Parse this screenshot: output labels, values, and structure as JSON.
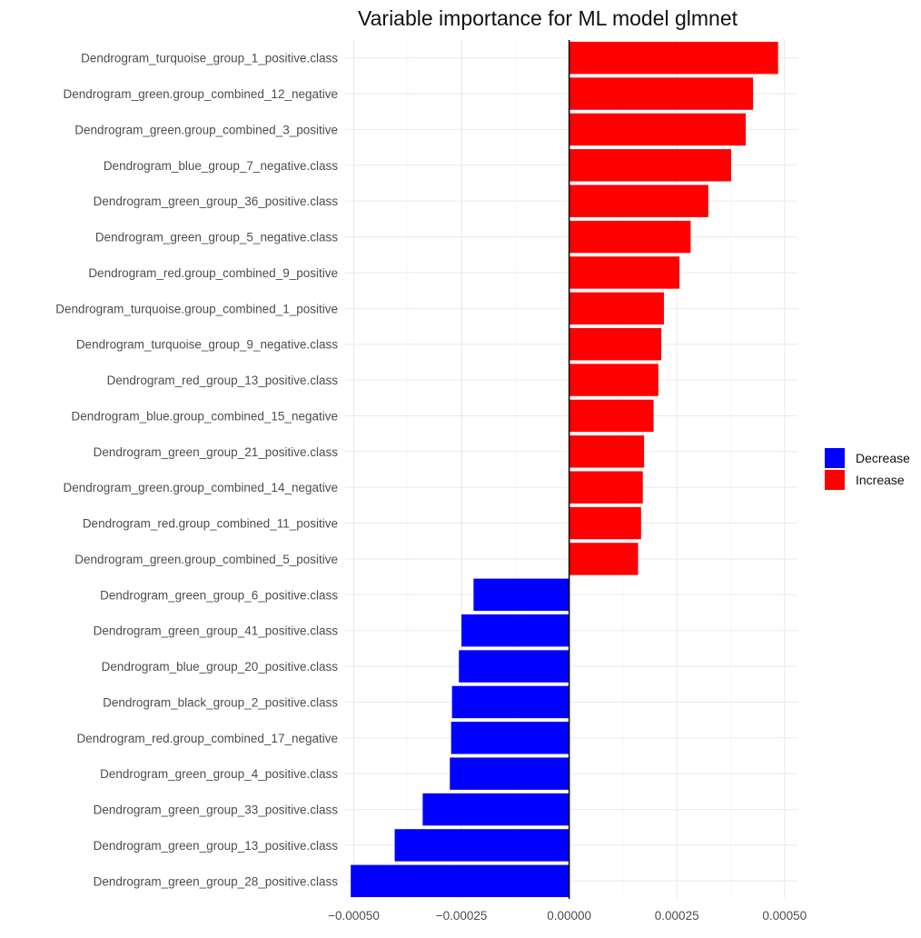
{
  "chart_data": {
    "type": "bar",
    "orientation": "horizontal",
    "title": "Variable importance for ML model glmnet",
    "xlabel": "",
    "ylabel": "",
    "xlim": [
      -0.00052,
      0.00053
    ],
    "x_ticks": [
      -0.0005,
      -0.00025,
      0,
      0.00025,
      0.0005
    ],
    "x_tick_labels": [
      "−0.00050",
      "−0.00025",
      "0.00000",
      "0.00025",
      "0.00050"
    ],
    "grid": true,
    "legend_position": "right",
    "legend": [
      {
        "label": "Decrease",
        "color": "#0000FF"
      },
      {
        "label": "Increase",
        "color": "#FF0000"
      }
    ],
    "categories": [
      "Dendrogram_turquoise_group_1_positive.class",
      "Dendrogram_green.group_combined_12_negative",
      "Dendrogram_green.group_combined_3_positive",
      "Dendrogram_blue_group_7_negative.class",
      "Dendrogram_green_group_36_positive.class",
      "Dendrogram_green_group_5_negative.class",
      "Dendrogram_red.group_combined_9_positive",
      "Dendrogram_turquoise.group_combined_1_positive",
      "Dendrogram_turquoise_group_9_negative.class",
      "Dendrogram_red_group_13_positive.class",
      "Dendrogram_blue.group_combined_15_negative",
      "Dendrogram_green_group_21_positive.class",
      "Dendrogram_green.group_combined_14_negative",
      "Dendrogram_red.group_combined_11_positive",
      "Dendrogram_green.group_combined_5_positive",
      "Dendrogram_green_group_6_positive.class",
      "Dendrogram_green_group_41_positive.class",
      "Dendrogram_blue_group_20_positive.class",
      "Dendrogram_black_group_2_positive.class",
      "Dendrogram_red.group_combined_17_negative",
      "Dendrogram_green_group_4_positive.class",
      "Dendrogram_green_group_33_positive.class",
      "Dendrogram_green_group_13_positive.class",
      "Dendrogram_green_group_28_positive.class"
    ],
    "values": [
      0.000485,
      0.000427,
      0.00041,
      0.000376,
      0.000323,
      0.000282,
      0.000256,
      0.00022,
      0.000214,
      0.000207,
      0.000196,
      0.000174,
      0.000171,
      0.000167,
      0.00016,
      -0.000222,
      -0.00025,
      -0.000256,
      -0.000272,
      -0.000274,
      -0.000277,
      -0.00034,
      -0.000405,
      -0.000507
    ],
    "directions": [
      "Increase",
      "Increase",
      "Increase",
      "Increase",
      "Increase",
      "Increase",
      "Increase",
      "Increase",
      "Increase",
      "Increase",
      "Increase",
      "Increase",
      "Increase",
      "Increase",
      "Increase",
      "Decrease",
      "Decrease",
      "Decrease",
      "Decrease",
      "Decrease",
      "Decrease",
      "Decrease",
      "Decrease",
      "Decrease"
    ]
  }
}
